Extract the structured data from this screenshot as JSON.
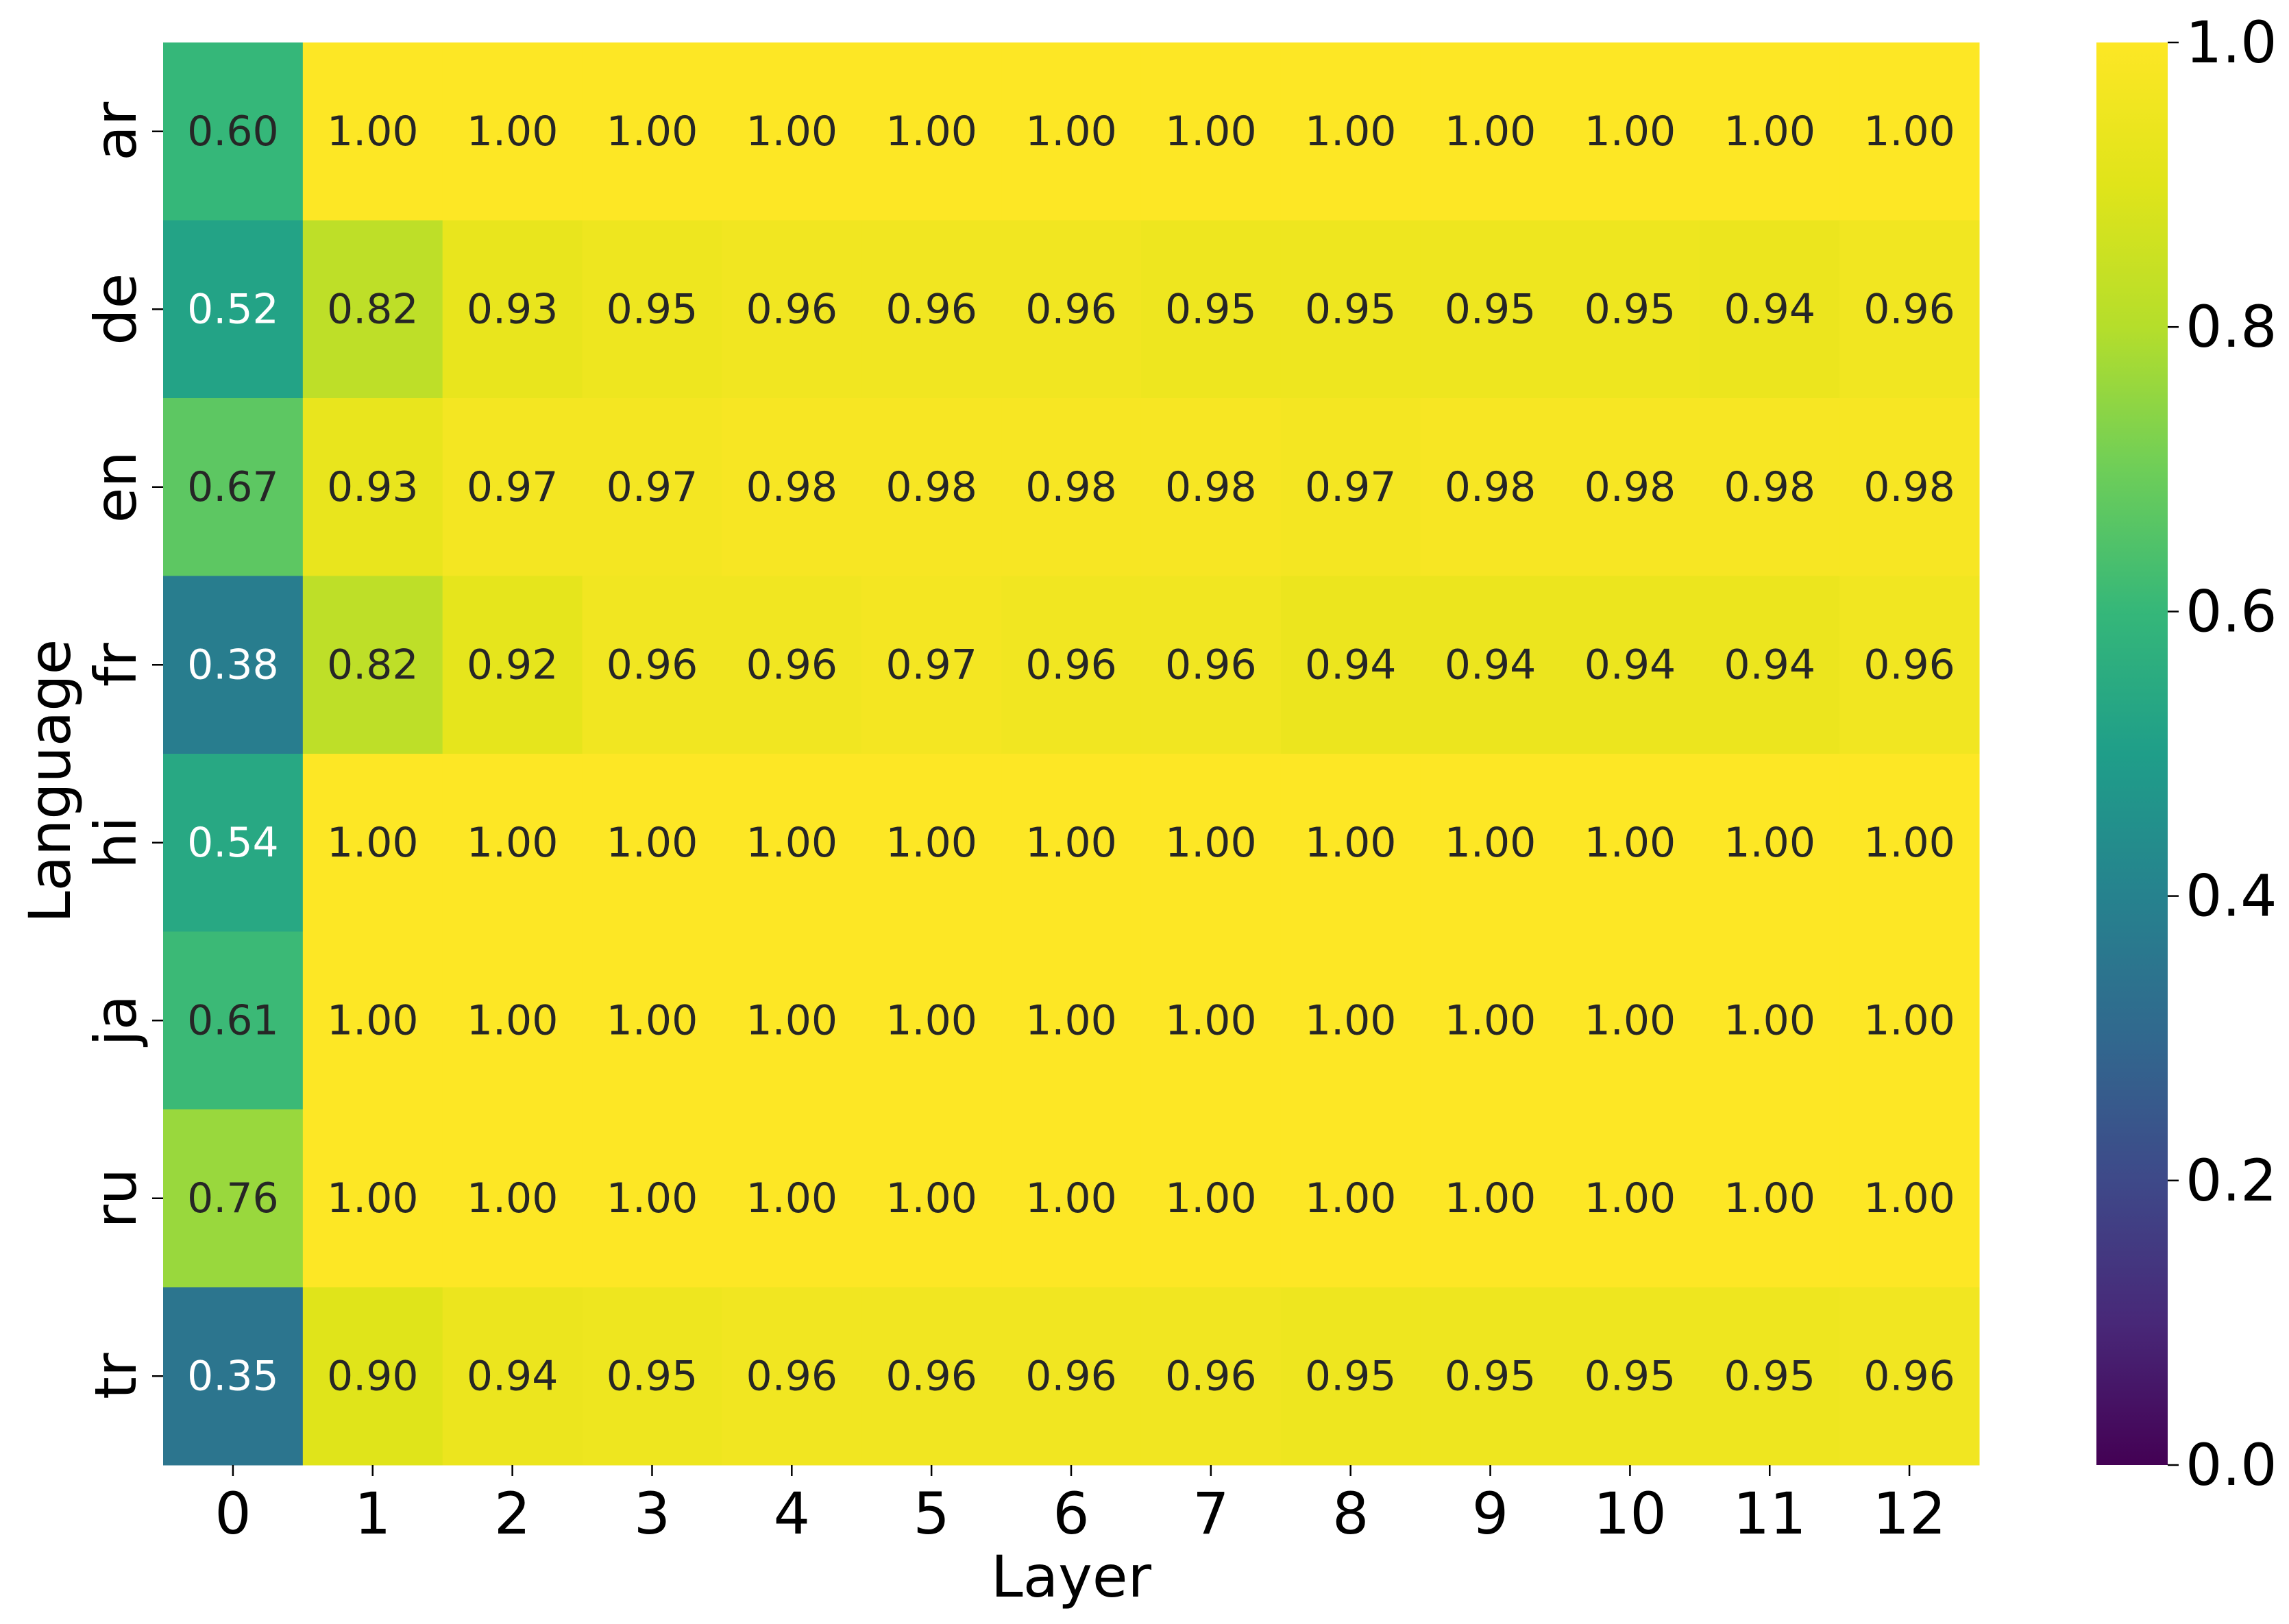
{
  "chart_data": {
    "type": "heatmap",
    "title": "",
    "xlabel": "Layer",
    "ylabel": "Language",
    "x_categories": [
      "0",
      "1",
      "2",
      "3",
      "4",
      "5",
      "6",
      "7",
      "8",
      "9",
      "10",
      "11",
      "12"
    ],
    "y_categories": [
      "ar",
      "de",
      "en",
      "fr",
      "hi",
      "ja",
      "ru",
      "tr"
    ],
    "values": [
      [
        0.6,
        1.0,
        1.0,
        1.0,
        1.0,
        1.0,
        1.0,
        1.0,
        1.0,
        1.0,
        1.0,
        1.0,
        1.0
      ],
      [
        0.52,
        0.82,
        0.93,
        0.95,
        0.96,
        0.96,
        0.96,
        0.95,
        0.95,
        0.95,
        0.95,
        0.94,
        0.96
      ],
      [
        0.67,
        0.93,
        0.97,
        0.97,
        0.98,
        0.98,
        0.98,
        0.98,
        0.97,
        0.98,
        0.98,
        0.98,
        0.98
      ],
      [
        0.38,
        0.82,
        0.92,
        0.96,
        0.96,
        0.97,
        0.96,
        0.96,
        0.94,
        0.94,
        0.94,
        0.94,
        0.96
      ],
      [
        0.54,
        1.0,
        1.0,
        1.0,
        1.0,
        1.0,
        1.0,
        1.0,
        1.0,
        1.0,
        1.0,
        1.0,
        1.0
      ],
      [
        0.61,
        1.0,
        1.0,
        1.0,
        1.0,
        1.0,
        1.0,
        1.0,
        1.0,
        1.0,
        1.0,
        1.0,
        1.0
      ],
      [
        0.76,
        1.0,
        1.0,
        1.0,
        1.0,
        1.0,
        1.0,
        1.0,
        1.0,
        1.0,
        1.0,
        1.0,
        1.0
      ],
      [
        0.35,
        0.9,
        0.94,
        0.95,
        0.96,
        0.96,
        0.96,
        0.96,
        0.95,
        0.95,
        0.95,
        0.95,
        0.96
      ]
    ],
    "value_format": "0.00",
    "colormap": "viridis",
    "colorbar": {
      "range": [
        0.0,
        1.0
      ],
      "ticks": [
        "0.0",
        "0.2",
        "0.4",
        "0.6",
        "0.8",
        "1.0"
      ],
      "position": "right"
    },
    "grid": false,
    "legend": "none"
  }
}
